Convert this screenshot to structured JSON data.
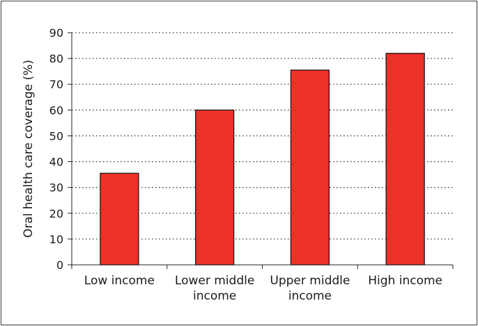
{
  "chart_data": {
    "type": "bar",
    "categories": [
      [
        "Low income"
      ],
      [
        "Lower middle",
        "income"
      ],
      [
        "Upper middle",
        "income"
      ],
      [
        "High income"
      ]
    ],
    "values": [
      35.5,
      60,
      75.5,
      82
    ],
    "ylabel": "Oral health care coverage (%)",
    "xlabel": "",
    "ylim": [
      0,
      90
    ],
    "yticks": [
      0,
      10,
      20,
      30,
      40,
      50,
      60,
      70,
      80,
      90
    ],
    "grid": "horizontal-dotted",
    "bar_color": "#ec3128",
    "bar_edge_color": "#1a1a1a"
  }
}
